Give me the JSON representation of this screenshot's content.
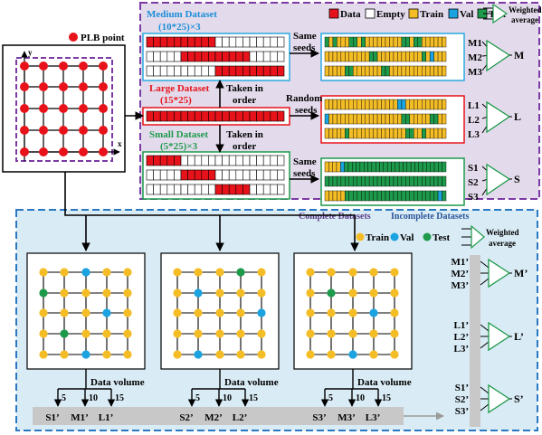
{
  "colors": {
    "data": "#e8131a",
    "empty": "#ffffff",
    "train": "#f5bd25",
    "val": "#1aa3e0",
    "test": "#1e9a4b",
    "titleRed": "#e8131a",
    "titleBlue": "#1a8ed8",
    "titleGreen": "#1e9a4b",
    "dashPurple": "#7b3aa4",
    "dashBlue": "#2a78c2",
    "purpleBg": "#e3dbec",
    "blueBg": "#d9ebf5",
    "boxBlue": "#2aa9e0",
    "boxRed": "#e8131a",
    "boxGreen": "#1e9a4b",
    "gray": "#c8c8c8",
    "line": "#000000",
    "textBlue": "#2a5599"
  },
  "legend_top": {
    "items": [
      {
        "label": "Data",
        "color": "data"
      },
      {
        "label": "Empty",
        "color": "empty"
      },
      {
        "label": "Train",
        "color": "train"
      },
      {
        "label": "Val",
        "color": "val"
      },
      {
        "label": "Test",
        "color": "test"
      }
    ],
    "weighted": [
      "Weighted",
      "average"
    ]
  },
  "legend_bottom": {
    "items": [
      {
        "label": "Train",
        "color": "train"
      },
      {
        "label": "Val",
        "color": "val"
      },
      {
        "label": "Test",
        "color": "test"
      }
    ],
    "weighted": [
      "Weighted",
      "average"
    ]
  },
  "plb_label": "PLB point",
  "axis_x": "x",
  "axis_y": "y",
  "medium": {
    "title": "Medium Dataset",
    "subtitle": "(10*25)×3",
    "rows": [
      {
        "fill": [
          0,
          10
        ]
      },
      {
        "fill": [
          5,
          15
        ]
      },
      {
        "fill": [
          10,
          20
        ]
      }
    ]
  },
  "large": {
    "title": "Large Dataset",
    "subtitle": "(15*25)"
  },
  "small": {
    "title": "Small Dataset",
    "subtitle": "(5*25)×3",
    "rows": [
      {
        "fill": [
          0,
          5
        ]
      },
      {
        "fill": [
          5,
          10
        ]
      },
      {
        "fill": [
          10,
          15
        ]
      }
    ]
  },
  "arrow_labels": {
    "taken1": [
      "Taken in",
      "order"
    ],
    "taken2": [
      "Taken in",
      "order"
    ],
    "same1": [
      "Same",
      "seeds"
    ],
    "random": [
      "Random",
      "seeds"
    ],
    "same2": [
      "Same",
      "seeds"
    ]
  },
  "split_rows": {
    "M": [
      {
        "label": "M1",
        "cells": "GTGTTTGGTGTTTTTTTTTGGTGGTTTTTT"
      },
      {
        "label": "M2",
        "cells": "TTTTTTTTTTTGGTTTTTTTTTTTGTVTTT"
      },
      {
        "label": "M3",
        "cells": "TTTTTGGTTTTTTTGGTTTTTTTTTTTTTT"
      }
    ],
    "L": [
      {
        "label": "L1",
        "cells": "TTTTTTTTTTTTTTTTTTVVTTTTTTTTTT"
      },
      {
        "label": "L2",
        "cells": "VTTTTTTTTTTTTTTTTTTGGTTTTTGGTT"
      },
      {
        "label": "L3",
        "cells": "TTTTTGTTTTTTTTTTTTTTGGTTGTTTTT"
      }
    ],
    "S": [
      {
        "label": "S1",
        "cells": "TTTTVGGGGGGGGGGGGGGGGGGGGGGGGGG"
      },
      {
        "label": "S2",
        "cells": "GGGGGGGGGGGGGGGGGGGGGGGGGGGGGG"
      },
      {
        "label": "S3",
        "cells": "TTTTTGGGGGGGGGGGGGGGGGGGGGGGVG"
      }
    ]
  },
  "group_letters": {
    "M": "M",
    "L": "L",
    "S": "S"
  },
  "section_labels": {
    "complete": "Complete Datasets",
    "incomplete": "Incomplete Datasets"
  },
  "grids": [
    {
      "points": "TTVTT/GTTTT/TTTVT/TGTTT/TTVTT"
    },
    {
      "points": "TTTGT/TVTTT/TTTTV/TTTTT/TVTTT"
    },
    {
      "points": "TTTTT/TGTTT/TTTVT/TTTTT/TTVTT"
    }
  ],
  "data_volume": "Data volume",
  "volume_ticks": [
    "5",
    "10",
    "15"
  ],
  "bottom_labels": [
    [
      "S1’",
      "M1’",
      "L1’"
    ],
    [
      "S2’",
      "M2’",
      "L2’"
    ],
    [
      "S3’",
      "M3’",
      "L3’"
    ]
  ],
  "right_panel": {
    "groups": [
      {
        "labels": [
          "M1’",
          "M2’",
          "M3’"
        ],
        "out": "M’"
      },
      {
        "labels": [
          "L1’",
          "L2’",
          "L3’"
        ],
        "out": "L’"
      },
      {
        "labels": [
          "S1’",
          "S2’",
          "S3’"
        ],
        "out": "S’"
      }
    ]
  }
}
